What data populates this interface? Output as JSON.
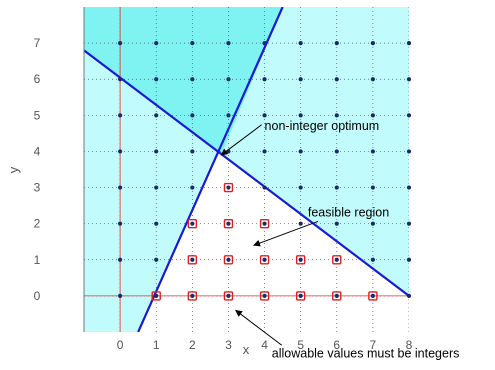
{
  "chart_data": {
    "type": "scatter",
    "title": "",
    "xlabel": "x",
    "ylabel": "y",
    "xlim": [
      -1,
      8
    ],
    "ylim": [
      -1,
      8
    ],
    "x_ticks": [
      "0",
      "1",
      "2",
      "3",
      "4",
      "5",
      "6",
      "7",
      "8"
    ],
    "y_ticks": [
      "0",
      "1",
      "2",
      "3",
      "4",
      "5",
      "6",
      "7"
    ],
    "grid": true,
    "colors": {
      "infeasible_light": "#c2fbfb",
      "infeasible_dark": "#7ff2f2",
      "constraint_line": "#1a1ad6",
      "lattice_point": "#1a2a66",
      "feasible_marker": "#e02020",
      "zero_axis": "#e03030"
    },
    "constraints": [
      {
        "points": [
          [
            -1,
            6.8
          ],
          [
            8,
            0
          ]
        ]
      },
      {
        "points": [
          [
            0.5,
            -1
          ],
          [
            4.5,
            8
          ]
        ]
      }
    ],
    "lattice": {
      "x_range": [
        0,
        8
      ],
      "y_range": [
        0,
        7
      ]
    },
    "feasible_integer_points": [
      [
        1,
        0
      ],
      [
        2,
        0
      ],
      [
        3,
        0
      ],
      [
        4,
        0
      ],
      [
        5,
        0
      ],
      [
        6,
        0
      ],
      [
        7,
        0
      ],
      [
        2,
        1
      ],
      [
        3,
        1
      ],
      [
        4,
        1
      ],
      [
        5,
        1
      ],
      [
        6,
        1
      ],
      [
        2,
        2
      ],
      [
        3,
        2
      ],
      [
        4,
        2
      ],
      [
        3,
        3
      ]
    ],
    "optimum_point": [
      2.8,
      3.9
    ],
    "annotations": [
      {
        "text": "non-integer optimum",
        "target": [
          2.8,
          3.9
        ],
        "text_at": [
          4,
          4.6
        ]
      },
      {
        "text": "feasible region",
        "target": [
          3.7,
          1.4
        ],
        "text_at": [
          5.2,
          2.2
        ]
      },
      {
        "text": "allowable values must be integers",
        "target": [
          3.2,
          -0.4
        ],
        "text_at": [
          4.2,
          -1.7
        ]
      }
    ]
  }
}
